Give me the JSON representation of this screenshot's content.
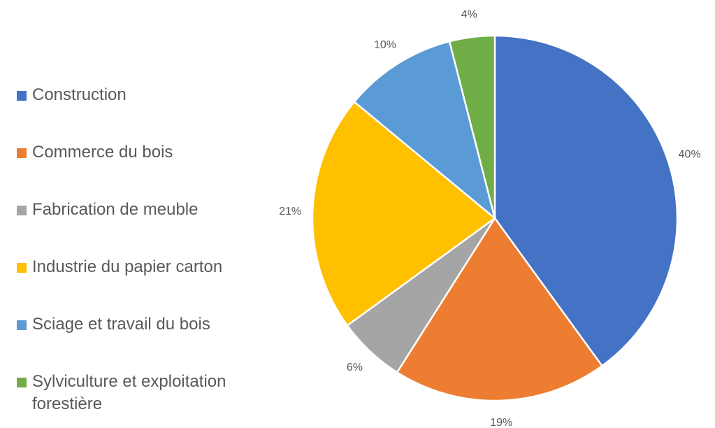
{
  "chart_data": {
    "type": "pie",
    "categories": [
      "Construction",
      "Commerce du bois",
      "Fabrication de meuble",
      "Industrie du papier carton",
      "Sciage et travail du bois",
      "Sylviculture et exploitation forestière"
    ],
    "values": [
      40,
      19,
      6,
      21,
      10,
      4
    ],
    "value_labels": [
      "40%",
      "19%",
      "6%",
      "21%",
      "10%",
      "4%"
    ],
    "colors": [
      "#4472c4",
      "#ed7d31",
      "#a5a5a5",
      "#ffc000",
      "#5b9bd5",
      "#70ad47"
    ],
    "legend": "left"
  }
}
